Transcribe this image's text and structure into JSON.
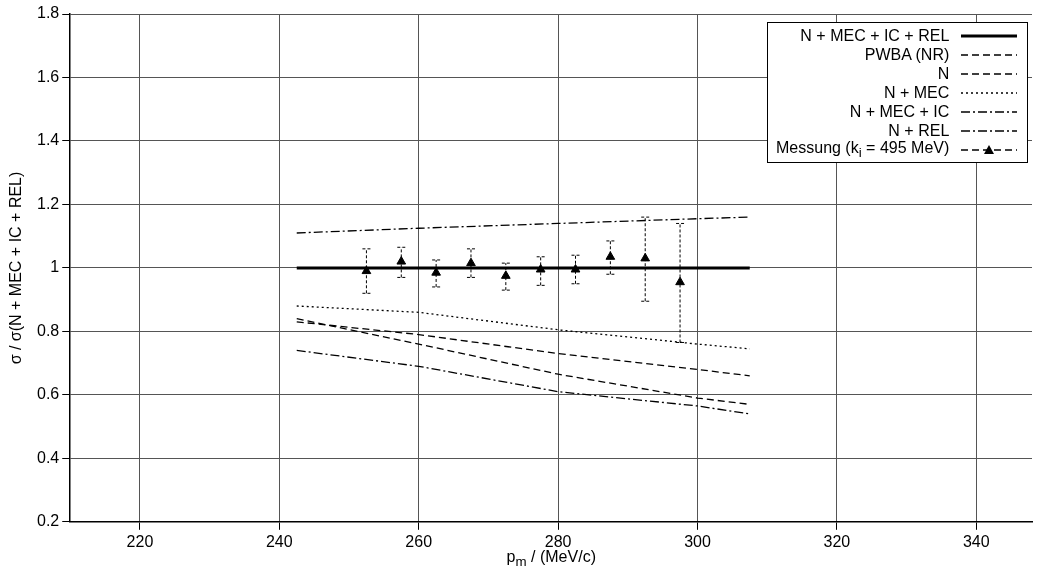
{
  "chart_data": {
    "type": "line",
    "xlabel": "p$_{m}$ / (MeV/c)",
    "ylabel": "σ / σ(N + MEC + IC + REL)",
    "xlim": [
      210,
      348
    ],
    "xticks": [
      220,
      240,
      260,
      280,
      300,
      320,
      340
    ],
    "ylim": [
      0.2,
      1.8
    ],
    "yticks": [
      0.2,
      0.4,
      0.6,
      0.8,
      1,
      1.2,
      1.4,
      1.6,
      1.8
    ],
    "grid": true,
    "legend": "top right",
    "marker": "none",
    "series": [
      {
        "name": "N + MEC + IC + REL",
        "color": "#000000",
        "line_style": "solid",
        "x": [
          242.5,
          307.5
        ],
        "values": [
          1,
          1
        ]
      },
      {
        "name": "PWBA (NR)",
        "color": "#000000",
        "line_style": "dashed",
        "x": [
          242.5,
          260,
          280,
          300,
          307.5
        ],
        "values": [
          0.84,
          0.76,
          0.665,
          0.59,
          0.57
        ]
      },
      {
        "name": "N",
        "color": "#000000",
        "line_style": "dashed",
        "x": [
          242.5,
          260,
          280,
          300,
          307.5
        ],
        "values": [
          0.83,
          0.79,
          0.73,
          0.68,
          0.66
        ]
      },
      {
        "name": "N + MEC",
        "color": "#000000",
        "line_style": "dotted",
        "x": [
          242.5,
          260,
          280,
          300,
          307.5
        ],
        "values": [
          0.88,
          0.86,
          0.805,
          0.76,
          0.745
        ]
      },
      {
        "name": "N + MEC + IC",
        "color": "#000000",
        "line_style": "dashdot",
        "x": [
          242.5,
          260,
          280,
          300,
          307.5
        ],
        "values": [
          1.11,
          1.125,
          1.14,
          1.155,
          1.16
        ]
      },
      {
        "name": "N + REL",
        "color": "#000000",
        "line_style": "dashdot",
        "x": [
          242.5,
          260,
          280,
          300,
          307.5
        ],
        "values": [
          0.74,
          0.69,
          0.61,
          0.565,
          0.54
        ]
      },
      {
        "name": "Messung (k$_{i}$ = 495 MeV)",
        "type": "scatter",
        "marker": "triangle",
        "color": "#000000",
        "x": [
          252.5,
          257.5,
          262.5,
          267.5,
          272.5,
          277.5,
          282.5,
          287.5,
          292.5,
          297.5
        ],
        "values": [
          0.99,
          1.02,
          0.985,
          1.015,
          0.975,
          0.995,
          0.995,
          1.035,
          1.03,
          0.955
        ],
        "errors": [
          [
            0.92,
            1.06
          ],
          [
            0.97,
            1.065
          ],
          [
            0.94,
            1.025
          ],
          [
            0.97,
            1.06
          ],
          [
            0.93,
            1.015
          ],
          [
            0.945,
            1.035
          ],
          [
            0.95,
            1.04
          ],
          [
            0.98,
            1.085
          ],
          [
            0.895,
            1.16
          ],
          [
            0.765,
            1.14
          ]
        ]
      }
    ]
  }
}
